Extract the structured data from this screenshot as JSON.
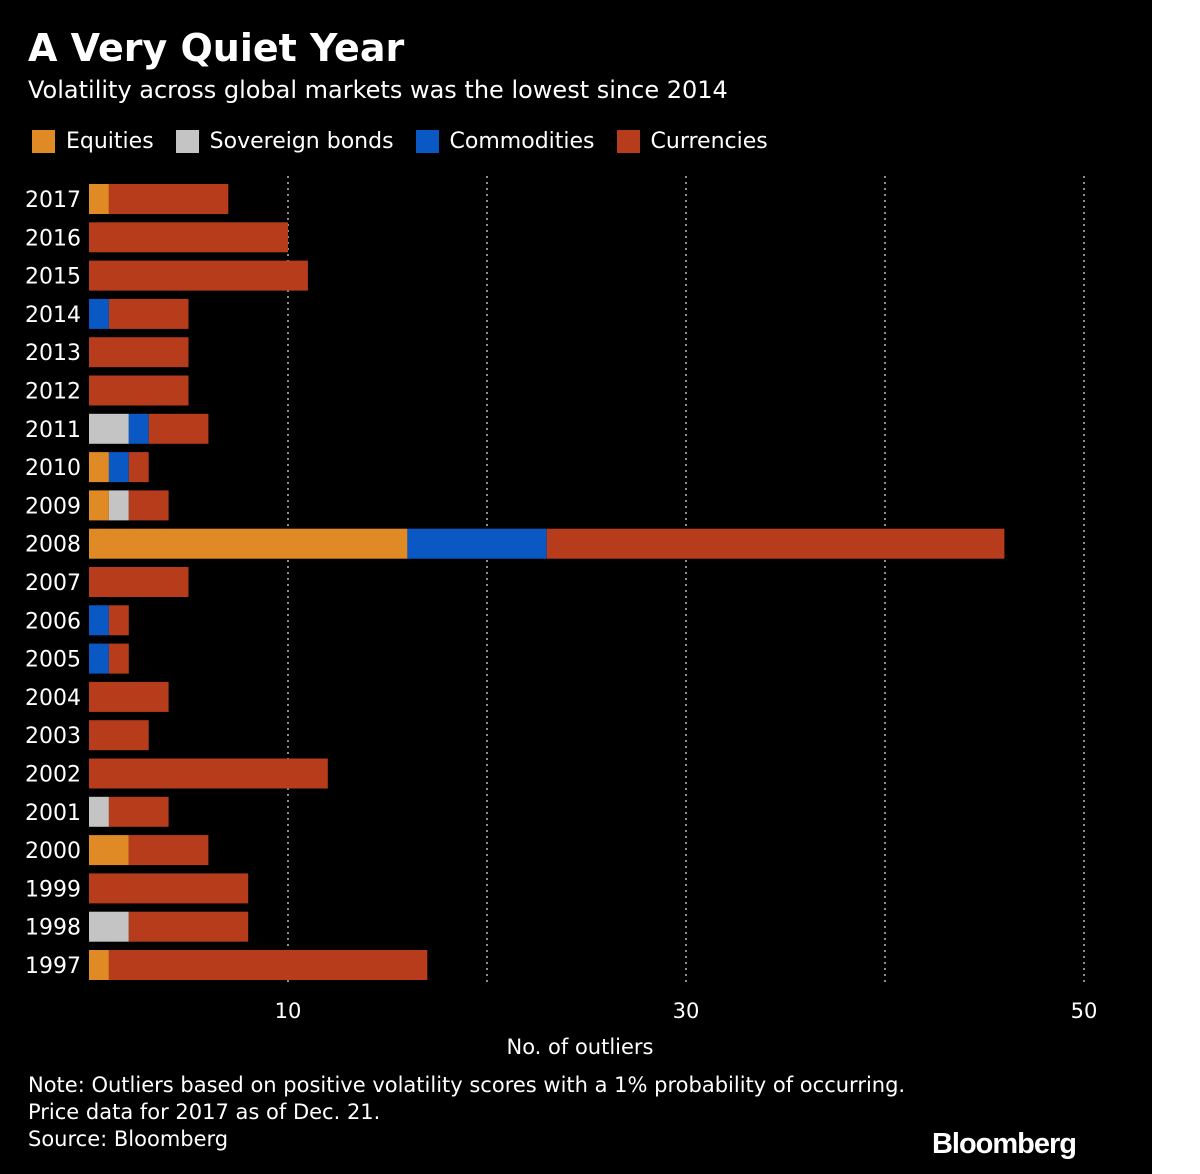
{
  "title": "A Very Quiet Year",
  "subtitle": "Volatility across global markets was the lowest since 2014",
  "legend": [
    {
      "label": "Equities",
      "color": "#e08a25"
    },
    {
      "label": "Sovereign bonds",
      "color": "#c4c4c4"
    },
    {
      "label": "Commodities",
      "color": "#0a58c4"
    },
    {
      "label": "Currencies",
      "color": "#b63c1c"
    }
  ],
  "notes": [
    "Note: Outliers based on positive volatility scores with a 1% probability of occurring.",
    "Price data for 2017 as of Dec. 21.",
    "Source: Bloomberg"
  ],
  "brand": "Bloomberg",
  "chart_data": {
    "type": "bar",
    "orientation": "horizontal",
    "stacked": true,
    "categories": [
      "2017",
      "2016",
      "2015",
      "2014",
      "2013",
      "2012",
      "2011",
      "2010",
      "2009",
      "2008",
      "2007",
      "2006",
      "2005",
      "2004",
      "2003",
      "2002",
      "2001",
      "2000",
      "1999",
      "1998",
      "1997"
    ],
    "series": [
      {
        "name": "Equities",
        "color": "#e08a25",
        "values": [
          1,
          0,
          0,
          0,
          0,
          0,
          0,
          1,
          1,
          16,
          0,
          0,
          0,
          0,
          0,
          0,
          0,
          2,
          0,
          0,
          1
        ]
      },
      {
        "name": "Sovereign bonds",
        "color": "#c4c4c4",
        "values": [
          0,
          0,
          0,
          0,
          0,
          0,
          2,
          0,
          1,
          0,
          0,
          0,
          0,
          0,
          0,
          0,
          1,
          0,
          0,
          2,
          0
        ]
      },
      {
        "name": "Commodities",
        "color": "#0a58c4",
        "values": [
          0,
          0,
          0,
          1,
          0,
          0,
          1,
          1,
          0,
          7,
          0,
          1,
          1,
          0,
          0,
          0,
          0,
          0,
          0,
          0,
          0
        ]
      },
      {
        "name": "Currencies",
        "color": "#b63c1c",
        "values": [
          6,
          10,
          11,
          4,
          5,
          5,
          3,
          1,
          2,
          23,
          5,
          1,
          1,
          4,
          3,
          12,
          3,
          4,
          8,
          6,
          16
        ]
      }
    ],
    "xlabel": "No. of outliers",
    "xlim": [
      0,
      50
    ],
    "xticks": [
      10,
      30,
      50
    ],
    "gridlines": [
      10,
      20,
      30,
      40,
      50
    ],
    "grid": "vertical dotted"
  }
}
